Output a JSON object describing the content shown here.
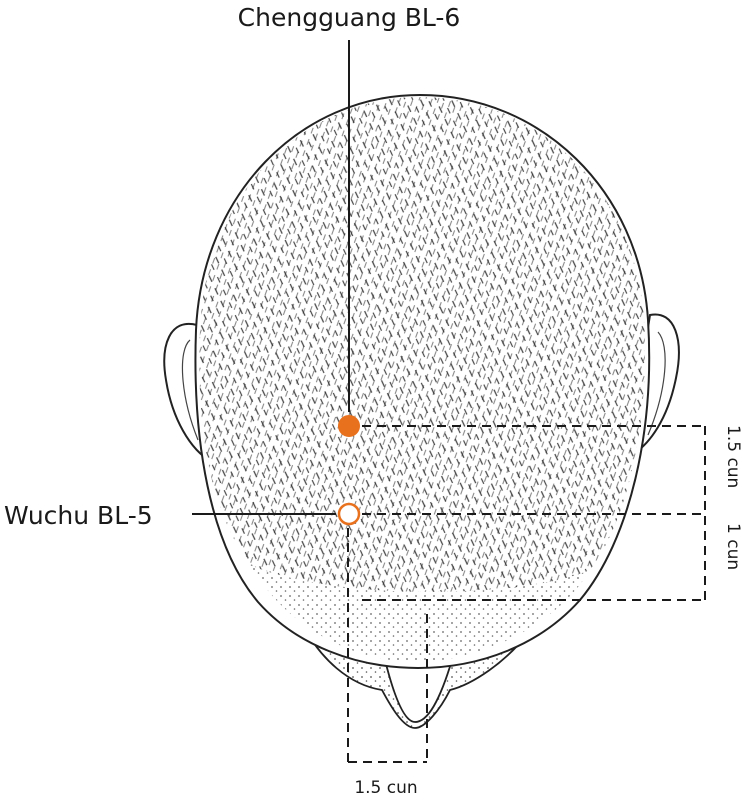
{
  "points": {
    "chengguang": {
      "label": "Chengguang BL-6",
      "marker": "filled"
    },
    "wuchu": {
      "label": "Wuchu BL-5",
      "marker": "hollow"
    }
  },
  "measurements": {
    "vertical_outer": "1.5 cun",
    "vertical_inner": "1 cun",
    "horizontal": "1.5 cun"
  },
  "colors": {
    "point": "#e8711e",
    "ink": "#1a1a1a",
    "skin": "#ffffff"
  }
}
